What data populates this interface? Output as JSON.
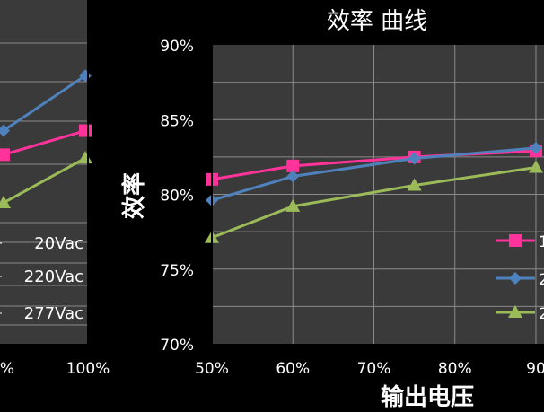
{
  "chart_data": [
    {
      "type": "line",
      "title": "",
      "xlabel": "",
      "ylabel": "",
      "x_tick_labels": [
        "%",
        "100%"
      ],
      "y_tick_labels": [],
      "legend_labels": [
        "20Vac",
        "220Vac",
        "277Vac"
      ],
      "grid": true,
      "series": [
        {
          "x": [
            0,
            1
          ],
          "values": [
            0.62,
            0.78
          ],
          "color": "#4f81bd",
          "marker": "diamond"
        },
        {
          "x": [
            0,
            1
          ],
          "values": [
            0.55,
            0.62
          ],
          "color": "#ff3399",
          "marker": "square"
        },
        {
          "x": [
            0,
            1
          ],
          "values": [
            0.41,
            0.54
          ],
          "color": "#9bbb59",
          "marker": "triangle"
        }
      ]
    },
    {
      "type": "line",
      "title": "效率 曲线",
      "xlabel": "输出电压",
      "ylabel": "效率",
      "x_tick_labels": [
        "50%",
        "60%",
        "70%",
        "80%",
        "90"
      ],
      "y_tick_labels": [
        "70%",
        "75%",
        "80%",
        "85%",
        "90%"
      ],
      "ylim": [
        70,
        90
      ],
      "legend_labels": [
        "1",
        "2",
        "2"
      ],
      "legend_position": "bottom-right",
      "grid": true,
      "series": [
        {
          "x": [
            50,
            60,
            75,
            90
          ],
          "values": [
            81.0,
            81.9,
            82.5,
            82.9
          ],
          "color": "#ff3399",
          "marker": "square"
        },
        {
          "x": [
            50,
            60,
            75,
            90
          ],
          "values": [
            79.6,
            81.2,
            82.4,
            83.1
          ],
          "color": "#4f81bd",
          "marker": "diamond"
        },
        {
          "x": [
            50,
            60,
            75,
            90
          ],
          "values": [
            77.1,
            79.2,
            80.6,
            81.8
          ],
          "color": "#9bbb59",
          "marker": "triangle"
        }
      ]
    }
  ]
}
